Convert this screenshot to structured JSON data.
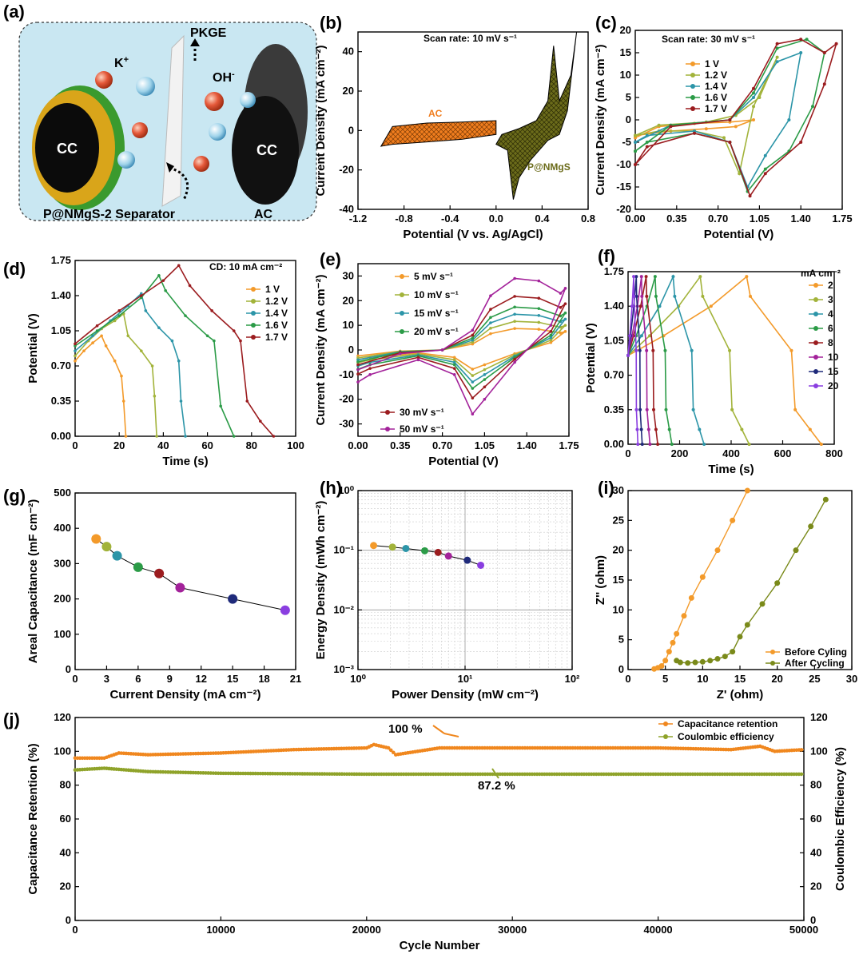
{
  "panels": {
    "a": {
      "label": "(a)",
      "texts": {
        "pkge": "PKGE",
        "k": "K",
        "k_sup": "+",
        "oh": "OH",
        "oh_sup": "-",
        "cc_left": "CC",
        "cc_right": "CC",
        "separator": "P@NMgS-2 Separator",
        "ac": "AC"
      }
    }
  },
  "chart_data": [
    {
      "id": "b",
      "label": "(b)",
      "type": "area",
      "xlabel": "Potential (V vs. Ag/AgCl)",
      "ylabel": "Current Density (mA cm⁻²)",
      "xlim": [
        -1.2,
        0.8
      ],
      "ylim": [
        -40,
        50
      ],
      "xticks": [
        -1.2,
        -0.8,
        -0.4,
        0.0,
        0.4,
        0.8
      ],
      "yticks": [
        -40,
        -20,
        0,
        20,
        40
      ],
      "xtick_labels": [
        "-1.2",
        "-0.8",
        "-0.4",
        "0.0",
        "0.4",
        "0.8"
      ],
      "ytick_labels": [
        "-40",
        "-20",
        "0",
        "20",
        "40"
      ],
      "annotations": {
        "scan_rate": "Scan rate: 10 mV s⁻¹",
        "ac": "AC",
        "pnmgs": "P@NMgS"
      },
      "series": [
        {
          "name": "AC",
          "color": "#f07d1e",
          "x": [
            -1.0,
            -0.9,
            -0.6,
            -0.3,
            0.0,
            0.0,
            -0.3,
            -0.6,
            -0.9,
            -1.0
          ],
          "y": [
            -8,
            -7,
            -5.8,
            -4.5,
            -2,
            5,
            4.3,
            3.8,
            2,
            -8
          ]
        },
        {
          "name": "P@NMgS",
          "color": "#6b6b1a",
          "x": [
            0.0,
            0.1,
            0.15,
            0.2,
            0.3,
            0.45,
            0.55,
            0.62,
            0.7,
            0.65,
            0.55,
            0.5,
            0.45,
            0.35,
            0.2,
            0.05,
            0.0
          ],
          "y": [
            -7,
            -10,
            -35,
            -24,
            -15,
            -5,
            -2,
            10,
            50,
            28,
            15,
            43,
            15,
            5,
            1,
            -2,
            -7
          ]
        }
      ]
    },
    {
      "id": "c",
      "label": "(c)",
      "type": "line",
      "xlabel": "Potential (V)",
      "ylabel": "Current Density (mA cm⁻²)",
      "xlim": [
        0,
        1.75
      ],
      "ylim": [
        -20,
        20
      ],
      "xticks": [
        0,
        0.35,
        0.7,
        1.05,
        1.4,
        1.75
      ],
      "yticks": [
        -20,
        -15,
        -10,
        -5,
        0,
        5,
        10,
        15,
        20
      ],
      "xtick_labels": [
        "0.00",
        "0.35",
        "0.70",
        "1.05",
        "1.40",
        "1.75"
      ],
      "ytick_labels": [
        "-20",
        "-15",
        "-10",
        "-5",
        "0",
        "5",
        "10",
        "15",
        "20"
      ],
      "annotations": {
        "scan_rate": "Scan rate: 30 mV s⁻¹"
      },
      "series": [
        {
          "name": "1 V",
          "color": "#f39a2a",
          "x": [
            0,
            0.2,
            0.5,
            0.8,
            1.0,
            0.85,
            0.6,
            0.3,
            0,
            0
          ],
          "y": [
            -4,
            -1.5,
            -0.8,
            -0.5,
            0,
            -1.5,
            -2,
            -2.5,
            -3.5,
            -4
          ]
        },
        {
          "name": "1.2 V",
          "color": "#a2b33a",
          "x": [
            0,
            0.2,
            0.6,
            0.85,
            1.05,
            1.2,
            1.0,
            0.88,
            0.75,
            0.5,
            0.2,
            0,
            0
          ],
          "y": [
            -3.5,
            -1.2,
            -0.5,
            1,
            5,
            14,
            3,
            -12,
            -4,
            -2.5,
            -2.5,
            -3.5,
            -3.5
          ]
        },
        {
          "name": "1.4 V",
          "color": "#2c95a8",
          "x": [
            0,
            0.3,
            0.8,
            1.0,
            1.2,
            1.4,
            1.3,
            1.1,
            0.95,
            0.8,
            0.5,
            0.1,
            0
          ],
          "y": [
            -5,
            -1.2,
            0,
            5,
            13,
            15,
            0,
            -8,
            -15,
            -5,
            -2.5,
            -3.5,
            -5
          ]
        },
        {
          "name": "1.6 V",
          "color": "#2b9b47",
          "x": [
            0,
            0.3,
            0.8,
            1.0,
            1.2,
            1.45,
            1.6,
            1.5,
            1.3,
            1.1,
            0.95,
            0.8,
            0.5,
            0.1,
            0
          ],
          "y": [
            -7,
            -1.2,
            0,
            6,
            16,
            18,
            15,
            3,
            -7,
            -11,
            -16,
            -5,
            -3,
            -5,
            -7
          ]
        },
        {
          "name": "1.7 V",
          "color": "#9b1c1f",
          "x": [
            0,
            0.3,
            0.8,
            1.0,
            1.2,
            1.4,
            1.6,
            1.7,
            1.6,
            1.4,
            1.1,
            0.97,
            0.8,
            0.5,
            0.1,
            0
          ],
          "y": [
            -10,
            -1.5,
            0,
            7,
            17,
            18,
            15,
            17,
            8,
            -5,
            -12,
            -17,
            -5,
            -3,
            -6,
            -10
          ]
        }
      ]
    },
    {
      "id": "d",
      "label": "(d)",
      "type": "line",
      "xlabel": "Time (s)",
      "ylabel": "Potential (V)",
      "xlim": [
        0,
        100
      ],
      "ylim": [
        0,
        1.75
      ],
      "xticks": [
        0,
        20,
        40,
        60,
        80,
        100
      ],
      "yticks": [
        0,
        0.35,
        0.7,
        1.05,
        1.4,
        1.75
      ],
      "xtick_labels": [
        "0",
        "20",
        "40",
        "60",
        "80",
        "100"
      ],
      "ytick_labels": [
        "0.00",
        "0.35",
        "0.70",
        "1.05",
        "1.40",
        "1.75"
      ],
      "annotations": {
        "cd": "CD: 10 mA cm⁻²"
      },
      "series": [
        {
          "name": "1 V",
          "color": "#f39a2a",
          "x": [
            0,
            4,
            8,
            12,
            14,
            18,
            21,
            22,
            23
          ],
          "y": [
            0.75,
            0.85,
            0.93,
            1.0,
            0.9,
            0.75,
            0.6,
            0.35,
            0
          ]
        },
        {
          "name": "1.2 V",
          "color": "#a2b33a",
          "x": [
            0,
            6,
            12,
            18,
            22,
            24,
            30,
            35,
            36,
            37
          ],
          "y": [
            0.8,
            0.95,
            1.07,
            1.15,
            1.22,
            1.0,
            0.85,
            0.7,
            0.4,
            0
          ]
        },
        {
          "name": "1.4 V",
          "color": "#2c95a8",
          "x": [
            0,
            8,
            16,
            24,
            30,
            32,
            38,
            44,
            47,
            48,
            50
          ],
          "y": [
            0.85,
            1.0,
            1.15,
            1.3,
            1.42,
            1.25,
            1.08,
            0.95,
            0.75,
            0.35,
            0
          ]
        },
        {
          "name": "1.6 V",
          "color": "#2b9b47",
          "x": [
            0,
            10,
            20,
            30,
            38,
            41,
            50,
            60,
            63,
            66,
            72
          ],
          "y": [
            0.9,
            1.05,
            1.2,
            1.38,
            1.6,
            1.45,
            1.2,
            1.0,
            0.95,
            0.3,
            0
          ]
        },
        {
          "name": "1.7 V",
          "color": "#9b1c1f",
          "x": [
            0,
            10,
            20,
            30,
            40,
            47,
            52,
            62,
            72,
            75,
            78,
            84,
            90
          ],
          "y": [
            0.92,
            1.1,
            1.25,
            1.4,
            1.55,
            1.7,
            1.5,
            1.25,
            1.05,
            0.95,
            0.35,
            0.15,
            0
          ]
        }
      ]
    },
    {
      "id": "e",
      "label": "(e)",
      "type": "line",
      "xlabel": "Potential (V)",
      "ylabel": "Current Density (mA cm⁻²)",
      "xlim": [
        0,
        1.75
      ],
      "ylim": [
        -35,
        35
      ],
      "xticks": [
        0,
        0.35,
        0.7,
        1.05,
        1.4,
        1.75
      ],
      "yticks": [
        -30,
        -20,
        -10,
        0,
        10,
        20,
        30
      ],
      "xtick_labels": [
        "0.00",
        "0.35",
        "0.70",
        "1.05",
        "1.40",
        "1.75"
      ],
      "ytick_labels": [
        "-30",
        "-20",
        "-10",
        "0",
        "10",
        "20",
        "30"
      ],
      "series": [
        {
          "name": "5 mV s⁻¹",
          "color": "#f39a2a",
          "scale": 0.3
        },
        {
          "name": "10 mV s⁻¹",
          "color": "#a2b33a",
          "scale": 0.4
        },
        {
          "name": "15 mV s⁻¹",
          "color": "#2c95a8",
          "scale": 0.5
        },
        {
          "name": "20 mV s⁻¹",
          "color": "#2b9b47",
          "scale": 0.6
        },
        {
          "name": "30 mV s⁻¹",
          "color": "#9b1c1f",
          "scale": 0.75
        },
        {
          "name": "50 mV s⁻¹",
          "color": "#a3229a",
          "scale": 1.0
        }
      ],
      "base_loop": {
        "x": [
          0,
          0.35,
          0.7,
          0.95,
          1.1,
          1.3,
          1.5,
          1.68,
          1.72,
          1.6,
          1.3,
          1.05,
          0.95,
          0.8,
          0.5,
          0.1,
          0
        ],
        "y": [
          -8,
          -1.5,
          0,
          8,
          22,
          29,
          28,
          23,
          25,
          10,
          -5,
          -20,
          -26,
          -10,
          -4,
          -10,
          -13
        ]
      }
    },
    {
      "id": "f",
      "label": "(f)",
      "type": "line",
      "xlabel": "Time (s)",
      "ylabel": "Potential (V)",
      "xlim": [
        0,
        800
      ],
      "ylim": [
        0,
        1.75
      ],
      "xticks": [
        0,
        200,
        400,
        600,
        800
      ],
      "yticks": [
        0,
        0.35,
        0.7,
        1.05,
        1.4,
        1.75
      ],
      "xtick_labels": [
        "0",
        "200",
        "400",
        "600",
        "800"
      ],
      "ytick_labels": [
        "0.00",
        "0.35",
        "0.70",
        "1.05",
        "1.40",
        "1.75"
      ],
      "legend_title": "mA cm⁻²",
      "series": [
        {
          "name": "2",
          "color": "#f39a2a",
          "charge_end": 460,
          "end": 750
        },
        {
          "name": "3",
          "color": "#a2b33a",
          "charge_end": 280,
          "end": 470
        },
        {
          "name": "4",
          "color": "#2c95a8",
          "charge_end": 175,
          "end": 295
        },
        {
          "name": "6",
          "color": "#2b9b47",
          "charge_end": 105,
          "end": 170
        },
        {
          "name": "8",
          "color": "#9b1c1f",
          "charge_end": 70,
          "end": 115
        },
        {
          "name": "10",
          "color": "#a3229a",
          "charge_end": 52,
          "end": 85
        },
        {
          "name": "15",
          "color": "#1f2a7a",
          "charge_end": 32,
          "end": 55
        },
        {
          "name": "20",
          "color": "#8a3ee0",
          "charge_end": 22,
          "end": 38
        }
      ]
    },
    {
      "id": "g",
      "label": "(g)",
      "type": "scatter",
      "xlabel": "Current Density (mA cm⁻²)",
      "ylabel": "Areal Capacitance (mF cm⁻²)",
      "xlim": [
        0,
        21
      ],
      "ylim": [
        0,
        500
      ],
      "xticks": [
        0,
        3,
        6,
        9,
        12,
        15,
        18,
        21
      ],
      "yticks": [
        0,
        100,
        200,
        300,
        400,
        500
      ],
      "xtick_labels": [
        "0",
        "3",
        "6",
        "9",
        "12",
        "15",
        "18",
        "21"
      ],
      "ytick_labels": [
        "0",
        "100",
        "200",
        "300",
        "400",
        "500"
      ],
      "x": [
        2,
        3,
        4,
        6,
        8,
        10,
        15,
        20
      ],
      "y": [
        370,
        348,
        322,
        290,
        272,
        232,
        200,
        168
      ],
      "colors": [
        "#f39a2a",
        "#a2b33a",
        "#2c95a8",
        "#2b9b47",
        "#9b1c1f",
        "#a3229a",
        "#1f2a7a",
        "#8a3ee0"
      ]
    },
    {
      "id": "h",
      "label": "(h)",
      "type": "scatter",
      "xlabel": "Power Density (mW cm⁻²)",
      "ylabel": "Energy Density (mWh cm⁻²)",
      "xscale": "log",
      "yscale": "log",
      "xlim": [
        1,
        100
      ],
      "ylim": [
        0.001,
        1
      ],
      "xticks": [
        1,
        10,
        100
      ],
      "yticks": [
        0.001,
        0.01,
        0.1,
        1
      ],
      "xtick_labels": [
        "10⁰",
        "10¹",
        "10²"
      ],
      "ytick_labels": [
        "10⁻³",
        "10⁻²",
        "10⁻¹",
        "10⁰"
      ],
      "x": [
        1.4,
        2.1,
        2.8,
        4.2,
        5.6,
        7.0,
        10.5,
        14.0
      ],
      "y": [
        0.12,
        0.113,
        0.107,
        0.098,
        0.092,
        0.08,
        0.068,
        0.056
      ],
      "colors": [
        "#f39a2a",
        "#a2b33a",
        "#2c95a8",
        "#2b9b47",
        "#9b1c1f",
        "#a3229a",
        "#1f2a7a",
        "#8a3ee0"
      ]
    },
    {
      "id": "i",
      "label": "(i)",
      "type": "line",
      "xlabel": "Z' (ohm)",
      "ylabel": "Z'' (ohm)",
      "xlim": [
        0,
        30
      ],
      "ylim": [
        0,
        30
      ],
      "xticks": [
        0,
        5,
        10,
        15,
        20,
        25,
        30
      ],
      "yticks": [
        0,
        5,
        10,
        15,
        20,
        25,
        30
      ],
      "xtick_labels": [
        "0",
        "5",
        "10",
        "15",
        "20",
        "25",
        "30"
      ],
      "ytick_labels": [
        "0",
        "5",
        "10",
        "15",
        "20",
        "25",
        "30"
      ],
      "series": [
        {
          "name": "Before Cyling",
          "color": "#f39a2a",
          "x": [
            3.5,
            4.0,
            4.5,
            5.0,
            5.5,
            6.0,
            6.5,
            7.5,
            8.5,
            10.0,
            12.0,
            14.0,
            16.0
          ],
          "y": [
            0.1,
            0.3,
            0.6,
            1.5,
            3.0,
            4.5,
            6.0,
            9.0,
            12.0,
            15.5,
            20.0,
            25.0,
            30.0
          ]
        },
        {
          "name": "After Cycling",
          "color": "#7a8a1a",
          "x": [
            6.5,
            7.0,
            8.0,
            9.0,
            10.0,
            11.0,
            12.0,
            13.0,
            14.0,
            15.0,
            16.0,
            18.0,
            20.0,
            22.5,
            24.5,
            26.5
          ],
          "y": [
            1.5,
            1.2,
            1.1,
            1.2,
            1.3,
            1.5,
            1.8,
            2.2,
            3.0,
            5.5,
            7.5,
            11.0,
            14.5,
            20.0,
            24.0,
            28.5
          ]
        }
      ]
    },
    {
      "id": "j",
      "label": "(j)",
      "type": "scatter",
      "xlabel": "Cycle Number",
      "ylabel": "Capacitance Retention (%)",
      "ylabel_right": "Coulombic Efficiency (%)",
      "xlim": [
        0,
        50000
      ],
      "ylim": [
        0,
        120
      ],
      "xticks": [
        0,
        10000,
        20000,
        30000,
        40000,
        50000
      ],
      "yticks": [
        0,
        20,
        40,
        60,
        80,
        100,
        120
      ],
      "xtick_labels": [
        "0",
        "10000",
        "20000",
        "30000",
        "40000",
        "50000"
      ],
      "ytick_labels": [
        "0",
        "20",
        "40",
        "60",
        "80",
        "100",
        "120"
      ],
      "annotations": {
        "retention": "100 %",
        "efficiency": "87.2 %"
      },
      "series": [
        {
          "name": "Capacitance retention",
          "color": "#f0871e",
          "x": [
            0,
            2000,
            3000,
            5000,
            10000,
            15000,
            20000,
            20500,
            21500,
            22000,
            25000,
            30000,
            35000,
            40000,
            45000,
            47000,
            48000,
            50000
          ],
          "y": [
            96,
            96,
            99,
            98,
            99,
            101,
            102,
            104,
            102,
            98,
            102,
            102,
            102,
            102,
            101,
            103,
            100,
            101
          ]
        },
        {
          "name": "Coulombic efficiency",
          "color": "#8fa32a",
          "x": [
            0,
            2000,
            5000,
            10000,
            20000,
            30000,
            40000,
            50000
          ],
          "y": [
            89,
            90,
            88,
            87,
            86.5,
            86.5,
            86.5,
            86.5
          ]
        }
      ]
    }
  ]
}
